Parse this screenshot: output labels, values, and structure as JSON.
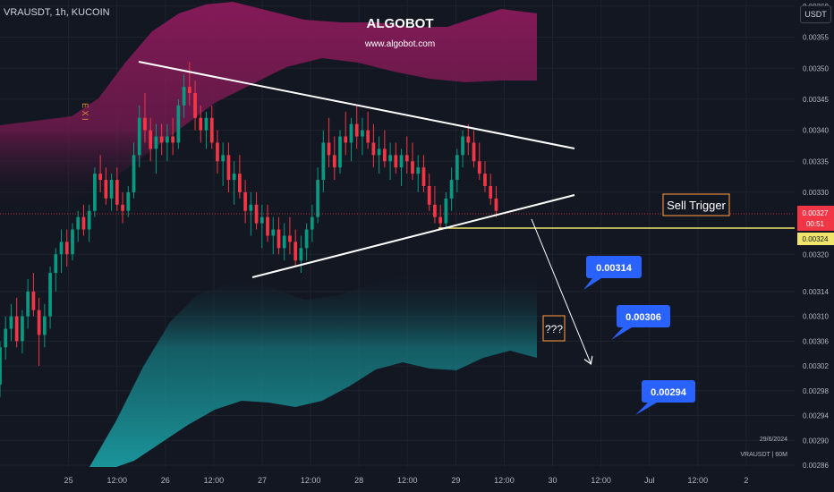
{
  "header": {
    "symbol": "VRAUSDT, 1h, KUCOIN",
    "watermark_name": "ALGOBOT",
    "watermark_url": "www.algobot.com",
    "currency": "USDT"
  },
  "labels": {
    "exit_marker": "E X I",
    "sell_trigger": "Sell Trigger",
    "question": "???",
    "target1": "0.00314",
    "target2": "0.00306",
    "target3": "0.00294",
    "date_info": "29/6/2024",
    "symbol_info": "VRAUSDT | 60M"
  },
  "price_tags": {
    "current_price": "0.00327",
    "countdown": "00:51",
    "support_price": "0.00324"
  },
  "colors": {
    "background": "#131722",
    "up_candle": "#089981",
    "down_candle": "#f23645",
    "upper_band": "#8b1a5b",
    "lower_band": "#19888f",
    "support_line": "#f0e66b",
    "target_box": "#2962ff",
    "question_box": "#e08a3a"
  },
  "chart_data": {
    "type": "candlestick",
    "title": "VRAUSDT, 1h, KUCOIN",
    "y_range": [
      0.00286,
      0.00361
    ],
    "y_ticks": [
      "0.00360",
      "0.00355",
      "0.00350",
      "0.00345",
      "0.00340",
      "0.00335",
      "0.00330",
      "0.00320",
      "0.00314",
      "0.00310",
      "0.00306",
      "0.00302",
      "0.00298",
      "0.00294",
      "0.00290",
      "0.00286"
    ],
    "x_ticks": [
      "25",
      "12:00",
      "26",
      "12:00",
      "27",
      "12:00",
      "28",
      "12:00",
      "29",
      "12:00",
      "30",
      "12:00",
      "Jul",
      "12:00",
      "2"
    ],
    "x_tick_hours": [
      0,
      12,
      24,
      36,
      48,
      60,
      72,
      84,
      96,
      108,
      120,
      132,
      144,
      156,
      168
    ],
    "x_range_hours": [
      -17,
      180
    ],
    "current_price": 0.00327,
    "support_level": 0.00324,
    "targets": [
      0.00314,
      0.00306,
      0.00294
    ],
    "candles": [
      [
        0.00299,
        0.00306,
        0.00297,
        0.00305
      ],
      [
        0.00305,
        0.0031,
        0.00303,
        0.00308
      ],
      [
        0.00308,
        0.00312,
        0.00306,
        0.0031
      ],
      [
        0.0031,
        0.00313,
        0.00305,
        0.00306
      ],
      [
        0.00306,
        0.00311,
        0.00304,
        0.0031
      ],
      [
        0.0031,
        0.00316,
        0.00308,
        0.00314
      ],
      [
        0.00314,
        0.00317,
        0.0031,
        0.00311
      ],
      [
        0.00311,
        0.00313,
        0.00302,
        0.00307
      ],
      [
        0.00307,
        0.00312,
        0.00305,
        0.0031
      ],
      [
        0.0031,
        0.00318,
        0.00308,
        0.00317
      ],
      [
        0.00317,
        0.00321,
        0.00314,
        0.0032
      ],
      [
        0.0032,
        0.00324,
        0.00317,
        0.00322
      ],
      [
        0.00322,
        0.00324,
        0.00318,
        0.0032
      ],
      [
        0.0032,
        0.00325,
        0.00319,
        0.00324
      ],
      [
        0.00324,
        0.00327,
        0.00322,
        0.00326
      ],
      [
        0.00326,
        0.00328,
        0.00323,
        0.00324
      ],
      [
        0.00324,
        0.00328,
        0.00322,
        0.00327
      ],
      [
        0.00327,
        0.00334,
        0.00326,
        0.00333
      ],
      [
        0.00333,
        0.00336,
        0.0033,
        0.00332
      ],
      [
        0.00332,
        0.00334,
        0.00328,
        0.00329
      ],
      [
        0.00329,
        0.00333,
        0.00327,
        0.00332
      ],
      [
        0.00332,
        0.00334,
        0.00327,
        0.00328
      ],
      [
        0.00328,
        0.0033,
        0.00325,
        0.00327
      ],
      [
        0.00327,
        0.00331,
        0.00326,
        0.0033
      ],
      [
        0.0033,
        0.00338,
        0.00329,
        0.00336
      ],
      [
        0.00336,
        0.00344,
        0.00334,
        0.00342
      ],
      [
        0.00342,
        0.00346,
        0.00338,
        0.0034
      ],
      [
        0.0034,
        0.00342,
        0.00335,
        0.00337
      ],
      [
        0.00337,
        0.00341,
        0.00333,
        0.00339
      ],
      [
        0.00339,
        0.00341,
        0.00336,
        0.00338
      ],
      [
        0.00338,
        0.00341,
        0.00335,
        0.00339
      ],
      [
        0.00339,
        0.00342,
        0.00336,
        0.00338
      ],
      [
        0.00338,
        0.00345,
        0.00337,
        0.00344
      ],
      [
        0.00344,
        0.00349,
        0.00342,
        0.00347
      ],
      [
        0.00347,
        0.00351,
        0.00344,
        0.00346
      ],
      [
        0.00346,
        0.00348,
        0.0034,
        0.00342
      ],
      [
        0.00342,
        0.00344,
        0.00338,
        0.0034
      ],
      [
        0.0034,
        0.00343,
        0.00337,
        0.00342
      ],
      [
        0.00342,
        0.00344,
        0.00337,
        0.00338
      ],
      [
        0.00338,
        0.0034,
        0.00333,
        0.00335
      ],
      [
        0.00335,
        0.00338,
        0.00331,
        0.00336
      ],
      [
        0.00336,
        0.00338,
        0.0033,
        0.00332
      ],
      [
        0.00332,
        0.00335,
        0.00328,
        0.00333
      ],
      [
        0.00333,
        0.00336,
        0.00329,
        0.0033
      ],
      [
        0.0033,
        0.00332,
        0.00325,
        0.00327
      ],
      [
        0.00327,
        0.0033,
        0.00323,
        0.00328
      ],
      [
        0.00328,
        0.0033,
        0.00324,
        0.00325
      ],
      [
        0.00325,
        0.00328,
        0.00321,
        0.00326
      ],
      [
        0.00326,
        0.00328,
        0.00322,
        0.00323
      ],
      [
        0.00323,
        0.00326,
        0.0032,
        0.00324
      ],
      [
        0.00324,
        0.00326,
        0.0032,
        0.00321
      ],
      [
        0.00321,
        0.00325,
        0.00319,
        0.00323
      ],
      [
        0.00323,
        0.00326,
        0.0032,
        0.00322
      ],
      [
        0.00322,
        0.00324,
        0.00318,
        0.00319
      ],
      [
        0.00319,
        0.00323,
        0.00317,
        0.00321
      ],
      [
        0.00321,
        0.00325,
        0.00319,
        0.00324
      ],
      [
        0.00324,
        0.00328,
        0.00322,
        0.00326
      ],
      [
        0.00326,
        0.00334,
        0.00325,
        0.00332
      ],
      [
        0.00332,
        0.0034,
        0.0033,
        0.00338
      ],
      [
        0.00338,
        0.00342,
        0.00334,
        0.00336
      ],
      [
        0.00336,
        0.00339,
        0.00332,
        0.00334
      ],
      [
        0.00334,
        0.0034,
        0.00333,
        0.00339
      ],
      [
        0.00339,
        0.00343,
        0.00336,
        0.00338
      ],
      [
        0.00338,
        0.00342,
        0.00335,
        0.00341
      ],
      [
        0.00341,
        0.00344,
        0.00337,
        0.00339
      ],
      [
        0.00339,
        0.00342,
        0.00336,
        0.0034
      ],
      [
        0.0034,
        0.00343,
        0.00337,
        0.00338
      ],
      [
        0.00338,
        0.00341,
        0.00334,
        0.00336
      ],
      [
        0.00336,
        0.00339,
        0.00333,
        0.00337
      ],
      [
        0.00337,
        0.0034,
        0.00334,
        0.00335
      ],
      [
        0.00335,
        0.00338,
        0.00332,
        0.00336
      ],
      [
        0.00336,
        0.00338,
        0.00333,
        0.00334
      ],
      [
        0.00334,
        0.00337,
        0.00331,
        0.00336
      ],
      [
        0.00336,
        0.00339,
        0.00333,
        0.00335
      ],
      [
        0.00335,
        0.00338,
        0.00332,
        0.00333
      ],
      [
        0.00333,
        0.00336,
        0.0033,
        0.00334
      ],
      [
        0.00334,
        0.00336,
        0.0033,
        0.00331
      ],
      [
        0.00331,
        0.00333,
        0.00327,
        0.00328
      ],
      [
        0.00328,
        0.00331,
        0.00325,
        0.00326
      ],
      [
        0.00326,
        0.00328,
        0.00324,
        0.00325
      ],
      [
        0.00325,
        0.0033,
        0.00324,
        0.00329
      ],
      [
        0.00329,
        0.00334,
        0.00327,
        0.00332
      ],
      [
        0.00332,
        0.00337,
        0.0033,
        0.00336
      ],
      [
        0.00336,
        0.0034,
        0.00334,
        0.00339
      ],
      [
        0.00339,
        0.00341,
        0.00336,
        0.00338
      ],
      [
        0.00338,
        0.0034,
        0.00334,
        0.00335
      ],
      [
        0.00335,
        0.00338,
        0.00332,
        0.00333
      ],
      [
        0.00333,
        0.00335,
        0.0033,
        0.00331
      ],
      [
        0.00331,
        0.00333,
        0.00328,
        0.00329
      ],
      [
        0.00329,
        0.00331,
        0.00326,
        0.00327
      ]
    ]
  }
}
